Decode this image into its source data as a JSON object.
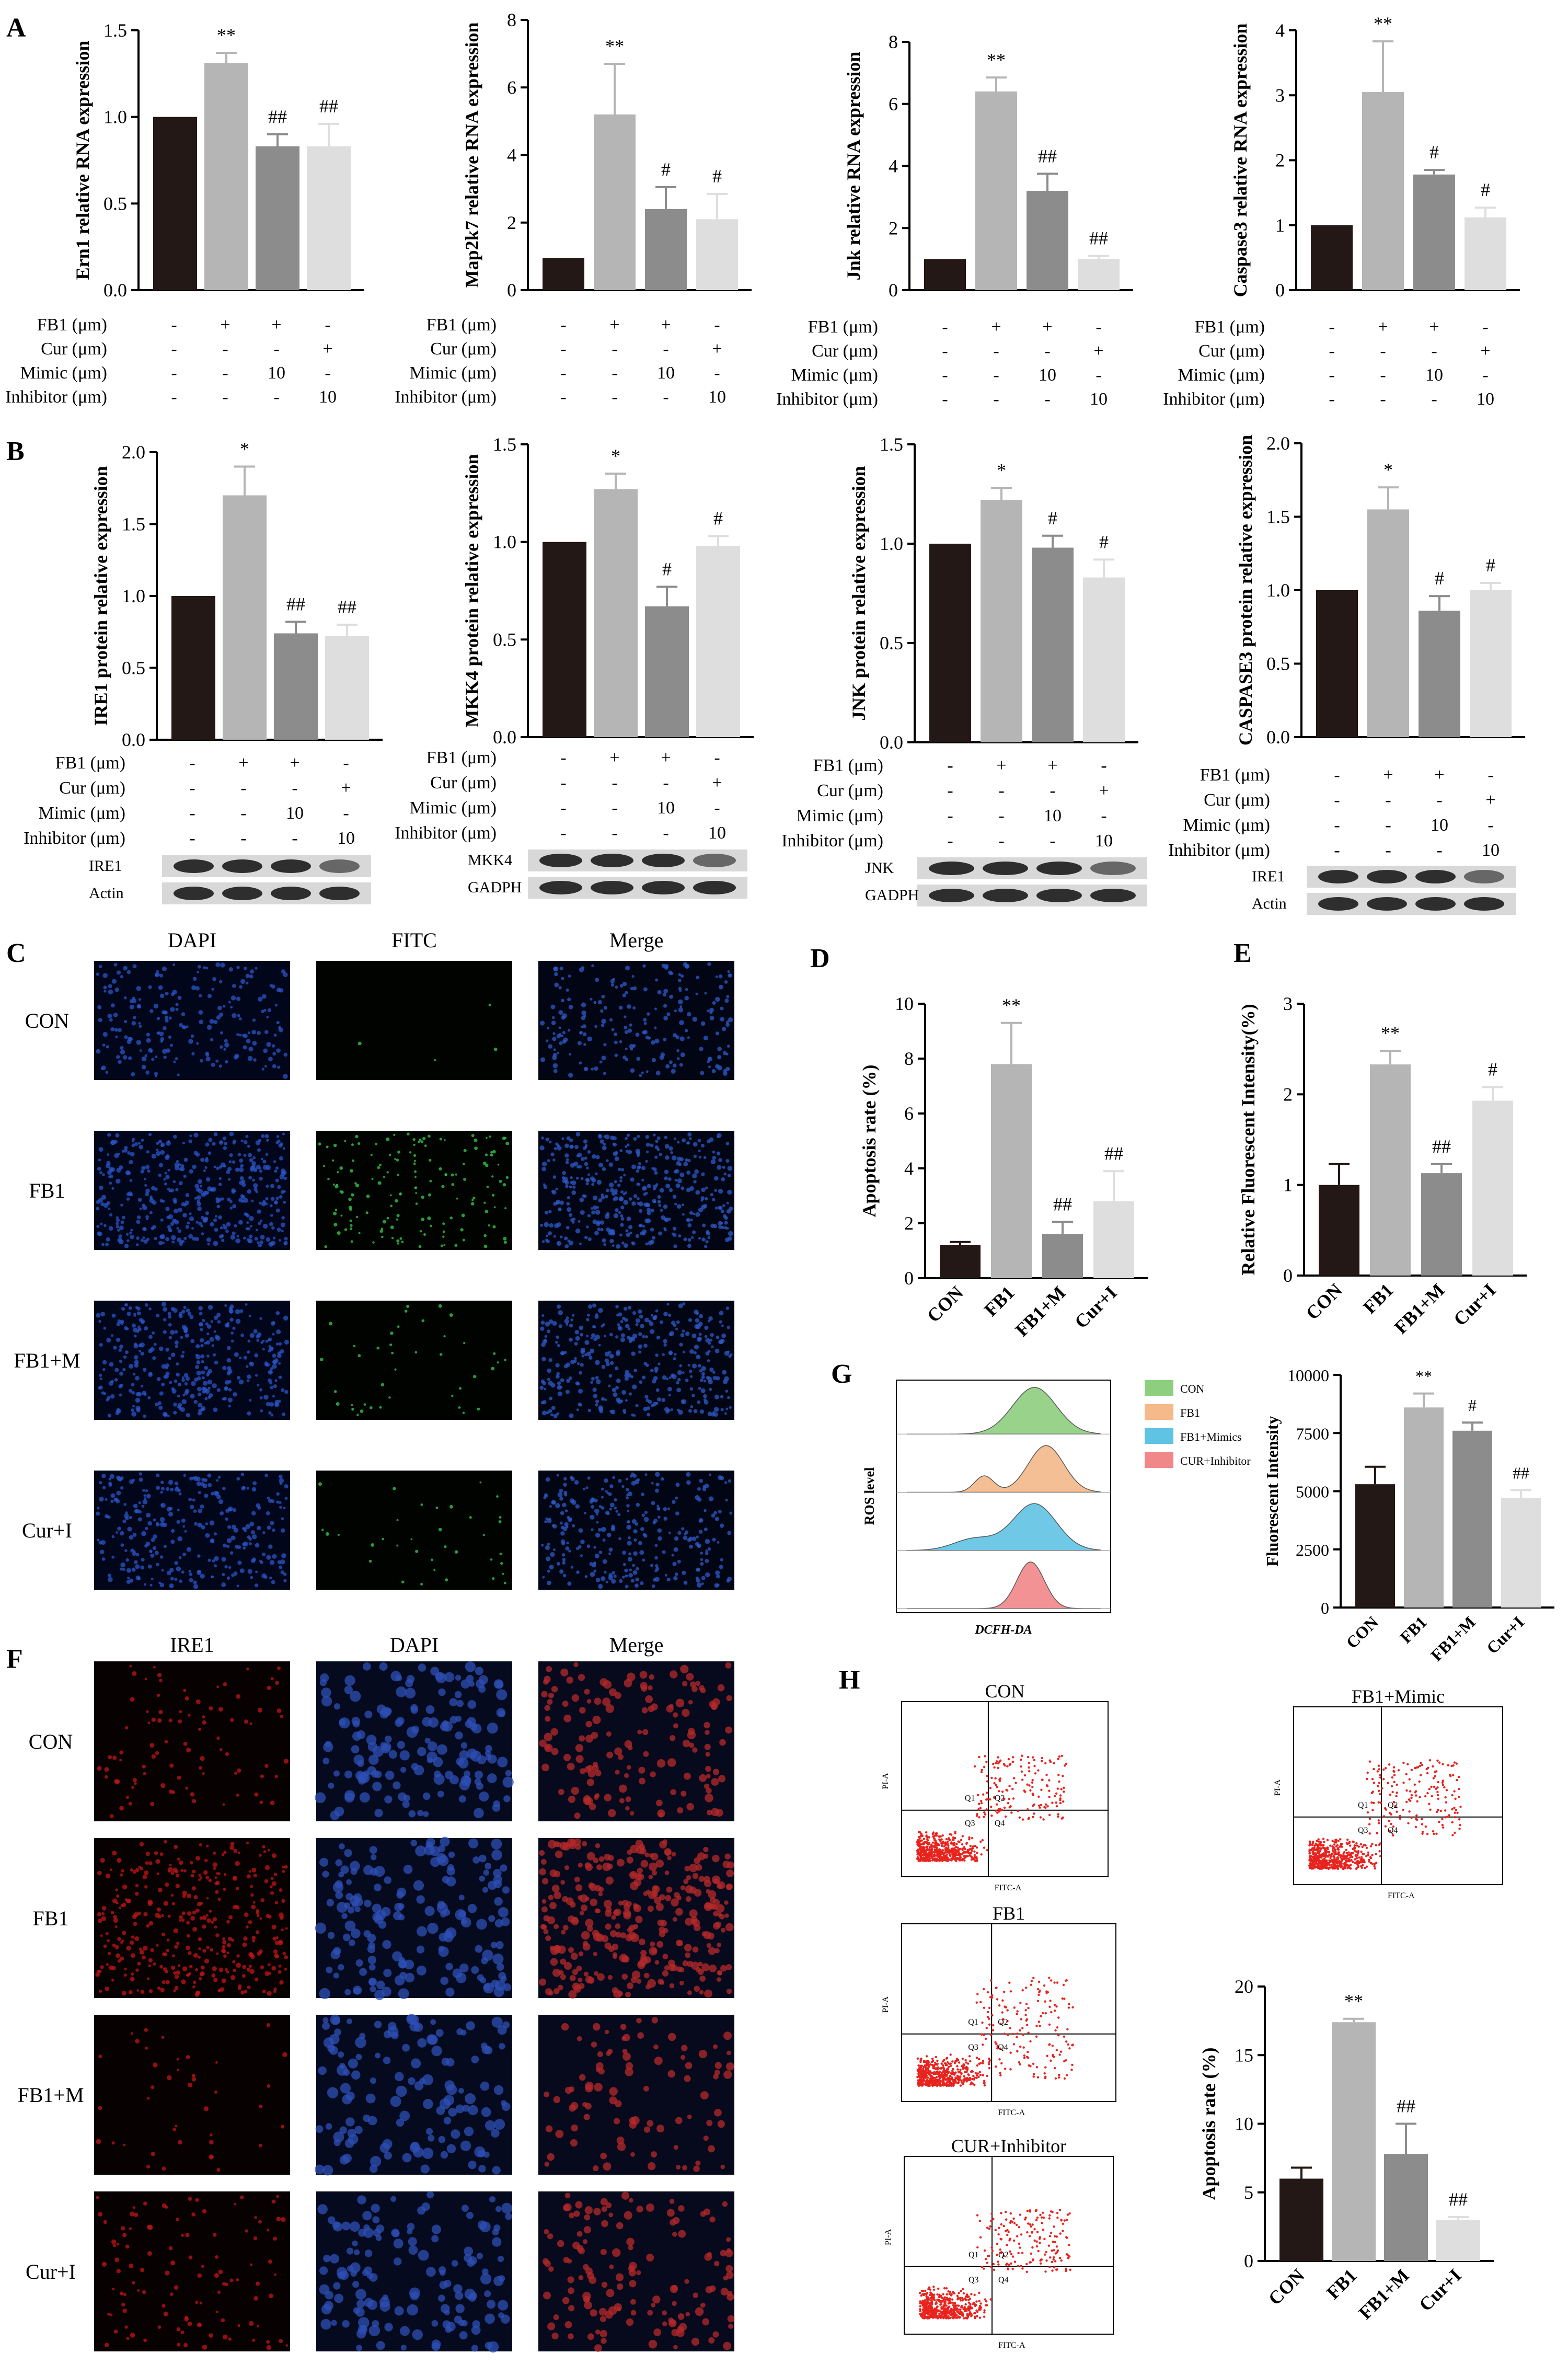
{
  "panel_labels": {
    "A": "A",
    "B": "B",
    "C": "C",
    "D": "D",
    "E": "E",
    "F": "F",
    "G": "G",
    "H": "H"
  },
  "colors": {
    "c0": "#231815",
    "c1": "#b5b5b5",
    "c2": "#8c8c8c",
    "c3": "#dedede",
    "con": "#8ecf7f",
    "fb1": "#f5b98a",
    "mimic": "#5fc3e4",
    "cur": "#f2878a",
    "dot": "#e8231e"
  },
  "cond_table": {
    "rows": [
      "FB1 (μm)",
      "Cur (μm)",
      "Mimic (μm)",
      "Inhibitor (μm)"
    ],
    "vals": [
      [
        "-",
        "+",
        "+",
        "-"
      ],
      [
        "-",
        "-",
        "-",
        "+"
      ],
      [
        "-",
        "-",
        "10",
        "-"
      ],
      [
        "-",
        "-",
        "-",
        "10"
      ]
    ]
  },
  "chart_data": [
    {
      "id": "A1",
      "type": "bar",
      "ylabel": "Ern1 relative RNA expression",
      "ylim": [
        0,
        1.5
      ],
      "ticks": [
        "0.0",
        "0.5",
        "1.0",
        "1.5"
      ],
      "values": [
        1.0,
        1.31,
        0.83,
        0.83
      ],
      "errors": [
        0,
        0.06,
        0.07,
        0.13
      ],
      "annotations": [
        "",
        "**",
        "##",
        "##"
      ]
    },
    {
      "id": "A2",
      "type": "bar",
      "ylabel": "Map2k7 relative RNA expression",
      "ylim": [
        0,
        8
      ],
      "ticks": [
        "0",
        "2",
        "4",
        "6",
        "8"
      ],
      "values": [
        0.95,
        5.2,
        2.4,
        2.1
      ],
      "errors": [
        0,
        1.5,
        0.65,
        0.75
      ],
      "annotations": [
        "",
        "**",
        "#",
        "#"
      ]
    },
    {
      "id": "A3",
      "type": "bar",
      "ylabel": "Jnk relative RNA expression",
      "ylim": [
        0,
        8
      ],
      "ticks": [
        "0",
        "2",
        "4",
        "6",
        "8"
      ],
      "values": [
        1.0,
        6.4,
        3.2,
        1.0
      ],
      "errors": [
        0,
        0.45,
        0.55,
        0.1
      ],
      "annotations": [
        "",
        "**",
        "##",
        "##"
      ]
    },
    {
      "id": "A4",
      "type": "bar",
      "ylabel": "Caspase3 relative RNA expression",
      "ylim": [
        0,
        4
      ],
      "ticks": [
        "0",
        "1",
        "2",
        "3",
        "4"
      ],
      "values": [
        1.0,
        3.05,
        1.78,
        1.12
      ],
      "errors": [
        0,
        0.78,
        0.07,
        0.15
      ],
      "annotations": [
        "",
        "**",
        "#",
        "#"
      ]
    },
    {
      "id": "B1",
      "type": "bar",
      "ylabel": "IRE1 protein relative expression",
      "ylim": [
        0,
        2.0
      ],
      "ticks": [
        "0.0",
        "0.5",
        "1.0",
        "1.5",
        "2.0"
      ],
      "values": [
        1.0,
        1.7,
        0.74,
        0.72
      ],
      "errors": [
        0,
        0.2,
        0.08,
        0.08
      ],
      "annotations": [
        "",
        "*",
        "##",
        "##"
      ]
    },
    {
      "id": "B2",
      "type": "bar",
      "ylabel": "MKK4 protein relative expression",
      "ylim": [
        0,
        1.5
      ],
      "ticks": [
        "0.0",
        "0.5",
        "1.0",
        "1.5"
      ],
      "values": [
        1.0,
        1.27,
        0.67,
        0.98
      ],
      "errors": [
        0,
        0.08,
        0.1,
        0.05
      ],
      "annotations": [
        "",
        "*",
        "#",
        "#"
      ]
    },
    {
      "id": "B3",
      "type": "bar",
      "ylabel": "JNK protein relative expression",
      "ylim": [
        0,
        1.5
      ],
      "ticks": [
        "0.0",
        "0.5",
        "1.0",
        "1.5"
      ],
      "values": [
        1.0,
        1.22,
        0.98,
        0.83
      ],
      "errors": [
        0,
        0.06,
        0.06,
        0.09
      ],
      "annotations": [
        "",
        "*",
        "#",
        "#"
      ]
    },
    {
      "id": "B4",
      "type": "bar",
      "ylabel": "CASPASE3 protein relative expression",
      "ylim": [
        0,
        2.0
      ],
      "ticks": [
        "0.0",
        "0.5",
        "1.0",
        "1.5",
        "2.0"
      ],
      "values": [
        1.0,
        1.55,
        0.86,
        1.0
      ],
      "errors": [
        0,
        0.15,
        0.1,
        0.05
      ],
      "annotations": [
        "",
        "*",
        "#",
        "#"
      ]
    },
    {
      "id": "D",
      "type": "bar",
      "ylabel": "Apoptosis rate (%)",
      "ylim": [
        0,
        10
      ],
      "ticks": [
        "0",
        "2",
        "4",
        "6",
        "8",
        "10"
      ],
      "categories": [
        "CON",
        "FB1",
        "FB1+M",
        "Cur+I"
      ],
      "values": [
        1.2,
        7.8,
        1.6,
        2.8
      ],
      "errors": [
        0.12,
        1.5,
        0.45,
        1.1
      ],
      "annotations": [
        "",
        "**",
        "##",
        "##"
      ]
    },
    {
      "id": "E",
      "type": "bar",
      "ylabel": "Relative Fluorescent Intensity(%)",
      "ylim": [
        0,
        3
      ],
      "ticks": [
        "0",
        "1",
        "2",
        "3"
      ],
      "categories": [
        "CON",
        "FB1",
        "FB1+M",
        "Cur+I"
      ],
      "values": [
        1.0,
        2.33,
        1.13,
        1.93
      ],
      "errors": [
        0.23,
        0.15,
        0.1,
        0.15
      ],
      "annotations": [
        "",
        "**",
        "##",
        "#"
      ]
    },
    {
      "id": "G",
      "type": "bar",
      "ylabel": "Fluorescent Intensity",
      "ylim": [
        0,
        10000
      ],
      "ticks": [
        "0",
        "2500",
        "5000",
        "7500",
        "10000"
      ],
      "categories": [
        "CON",
        "FB1",
        "FB1+M",
        "Cur+I"
      ],
      "values": [
        5300,
        8600,
        7600,
        4700
      ],
      "errors": [
        750,
        600,
        350,
        350
      ],
      "annotations": [
        "",
        "**",
        "#",
        "##"
      ]
    },
    {
      "id": "H",
      "type": "bar",
      "ylabel": "Apoptosis rate (%)",
      "ylim": [
        0,
        20
      ],
      "ticks": [
        "0",
        "5",
        "10",
        "15",
        "20"
      ],
      "categories": [
        "CON",
        "FB1",
        "FB1+M",
        "Cur+I"
      ],
      "values": [
        6.0,
        17.4,
        7.8,
        3.0
      ],
      "errors": [
        0.8,
        0.25,
        2.2,
        0.2
      ],
      "annotations": [
        "",
        "**",
        "##",
        "##"
      ]
    }
  ],
  "blots": {
    "B1": [
      "IRE1",
      "Actin"
    ],
    "B2": [
      "MKK4",
      "GADPH"
    ],
    "B3": [
      "JNK",
      "GADPH"
    ],
    "B4": [
      "IRE1",
      "Actin"
    ]
  },
  "panel_C": {
    "cols": [
      "DAPI",
      "FITC",
      "Merge"
    ],
    "rows": [
      "CON",
      "FB1",
      "FB1+M",
      "Cur+I"
    ]
  },
  "panel_F": {
    "cols": [
      "IRE1",
      "DAPI",
      "Merge"
    ],
    "rows": [
      "CON",
      "FB1",
      "FB1+M",
      "Cur+I"
    ]
  },
  "panel_G_hist": {
    "ylabel": "ROS level",
    "xlabel": "DCFH-DA",
    "legend": [
      "CON",
      "FB1",
      "FB1+Mimics",
      "CUR+Inhibitor"
    ]
  },
  "panel_H_flow": {
    "titles": [
      "CON",
      "FB1",
      "CUR+Inhibitor",
      "FB1+Mimic"
    ],
    "xaxis": "FITC-A",
    "yaxis": "PI-A",
    "quadrants": [
      "Q1",
      "Q2",
      "Q3",
      "Q4"
    ]
  }
}
